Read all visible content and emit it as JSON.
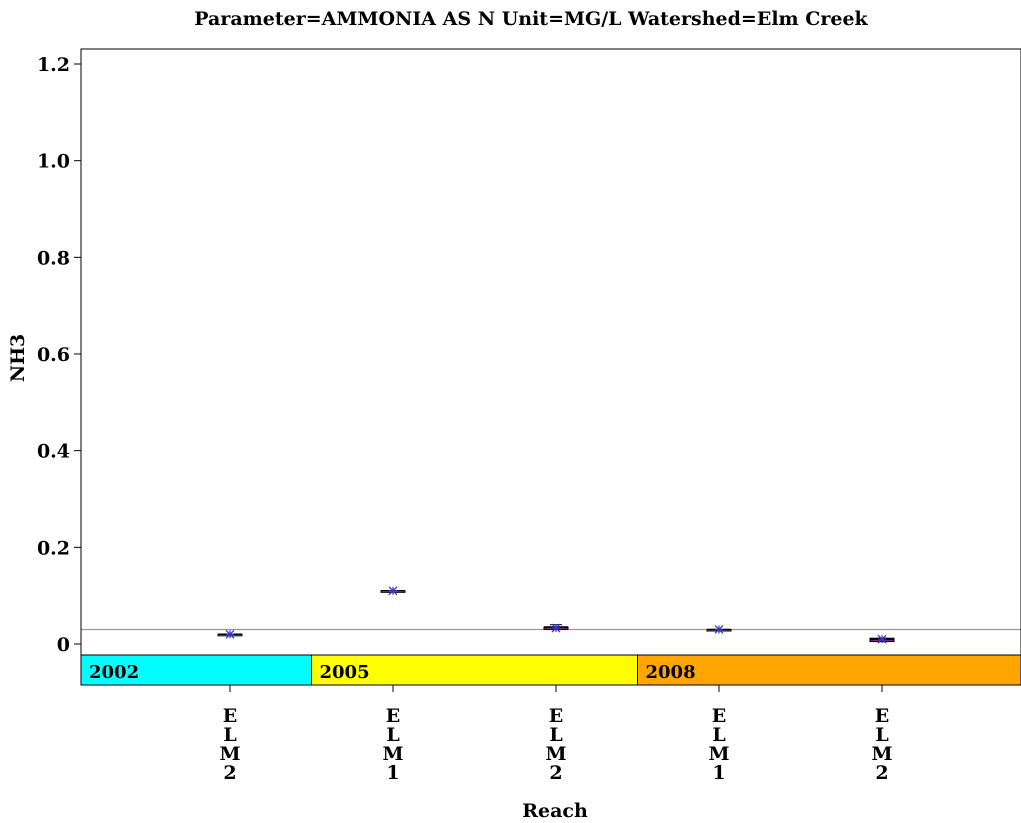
{
  "chart_data": {
    "type": "box",
    "title": "Parameter=AMMONIA AS N Unit=MG/L Watershed=Elm Creek",
    "xlabel": "Reach",
    "ylabel": "NH3",
    "ylim": [
      -0.08,
      1.22
    ],
    "yticks": [
      0,
      0.2,
      0.4,
      0.6,
      0.8,
      1.0,
      1.2
    ],
    "ytick_labels": [
      "0",
      "0.2",
      "0.4",
      "0.6",
      "0.8",
      "1.0",
      "1.2"
    ],
    "reference_line": 0.03,
    "categories": [
      "ELM2",
      "ELM1",
      "ELM2",
      "ELM1",
      "ELM2"
    ],
    "category_labels": [
      [
        "E",
        "L",
        "M",
        "2"
      ],
      [
        "E",
        "L",
        "M",
        "1"
      ],
      [
        "E",
        "L",
        "M",
        "2"
      ],
      [
        "E",
        "L",
        "M",
        "1"
      ],
      [
        "E",
        "L",
        "M",
        "2"
      ]
    ],
    "boxes": [
      {
        "year": "2002",
        "min": 0.02,
        "q1": 0.02,
        "median": 0.02,
        "q3": 0.02,
        "max": 0.02,
        "mean": 0.02
      },
      {
        "year": "2005",
        "min": 0.11,
        "q1": 0.11,
        "median": 0.11,
        "q3": 0.11,
        "max": 0.11,
        "mean": 0.11
      },
      {
        "year": "2005",
        "min": 0.03,
        "q1": 0.03,
        "median": 0.035,
        "q3": 0.035,
        "max": 0.04,
        "mean": 0.033
      },
      {
        "year": "2008",
        "min": 0.03,
        "q1": 0.03,
        "median": 0.03,
        "q3": 0.03,
        "max": 0.03,
        "mean": 0.03
      },
      {
        "year": "2008",
        "min": 0.005,
        "q1": 0.005,
        "median": 0.01,
        "q3": 0.012,
        "max": 0.012,
        "mean": 0.01
      }
    ],
    "year_groups": [
      {
        "label": "2002",
        "color": "#00ffff",
        "from_index": 0,
        "to_index": 0
      },
      {
        "label": "2005",
        "color": "#ffff00",
        "from_index": 1,
        "to_index": 2
      },
      {
        "label": "2008",
        "color": "#ffa500",
        "from_index": 3,
        "to_index": 4
      }
    ],
    "colors": {
      "mean_marker": "#3333cc",
      "reference_line": "#999999",
      "box_fill": "#7a2a7a"
    },
    "grid": false,
    "legend": "none"
  }
}
